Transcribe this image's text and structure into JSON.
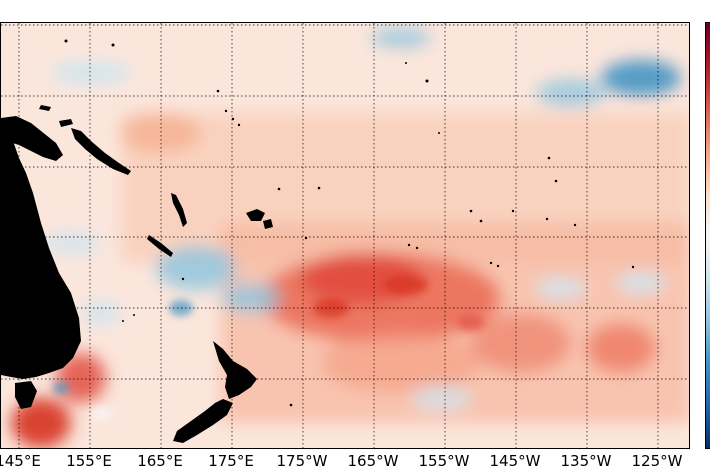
{
  "map": {
    "projection": "equirectangular",
    "field": "anomaly",
    "colormap": "RdBu_r (blue negative, red positive)",
    "land_color": "#000000",
    "grid": "dotted black, every 10 degrees",
    "dominant_sign": "positive"
  },
  "x_ticks": [
    "145°E",
    "155°E",
    "165°E",
    "175°E",
    "175°W",
    "165°W",
    "155°W",
    "145°W",
    "135°W",
    "125°W"
  ],
  "colors": {
    "positive_strong": "#d7301f",
    "positive_mid": "#f4a582",
    "positive_light": "#fddbc7",
    "neutral": "#f7f7f7",
    "negative_light": "#d1e5f0",
    "negative_mid": "#92c5de",
    "negative_strong": "#4393c3",
    "land": "#000000"
  }
}
